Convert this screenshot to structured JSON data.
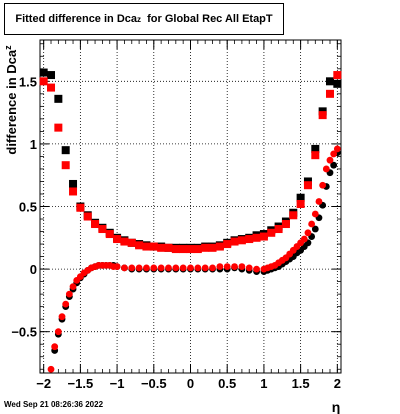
{
  "chart_data": {
    "type": "scatter",
    "title": {
      "prefix": "Fitted difference in Dca",
      "sub": "z",
      "suffix": "for Global Rec All EtapT"
    },
    "xlabel": "η",
    "ylabel": {
      "main": "difference in Dca",
      "sub": "z"
    },
    "xlim": [
      -2.05,
      2.05
    ],
    "ylim": [
      -0.83,
      1.83
    ],
    "xticks": [
      -2,
      -1.5,
      -1,
      -0.5,
      0,
      0.5,
      1,
      1.5,
      2
    ],
    "xtick_labels": [
      "−2",
      "−1.5",
      "−1",
      "−0.5",
      "0",
      "0.5",
      "1",
      "1.5",
      "2"
    ],
    "yticks": [
      -0.5,
      0,
      0.5,
      1,
      1.5
    ],
    "ytick_labels": [
      "−0.5",
      "0",
      "0.5",
      "1",
      "1.5"
    ],
    "grid": true,
    "colors": {
      "black_series": "#000000",
      "red_series": "#ff0000"
    },
    "series": [
      {
        "color": "black",
        "marker": "square",
        "x": [
          -2.0,
          -1.9,
          -1.8,
          -1.7,
          -1.6,
          -1.5,
          -1.4,
          -1.3,
          -1.2,
          -1.1,
          -1.0,
          -0.9,
          -0.8,
          -0.7,
          -0.6,
          -0.5,
          -0.4,
          -0.3,
          -0.2,
          -0.1,
          0.0,
          0.1,
          0.2,
          0.3,
          0.4,
          0.5,
          0.6,
          0.7,
          0.8,
          0.9,
          1.0,
          1.1,
          1.2,
          1.3,
          1.4,
          1.5,
          1.6,
          1.7,
          1.8,
          1.9,
          2.0
        ],
        "y": [
          1.57,
          1.55,
          1.36,
          0.95,
          0.68,
          0.5,
          0.43,
          0.37,
          0.33,
          0.29,
          0.25,
          0.23,
          0.21,
          0.2,
          0.19,
          0.18,
          0.18,
          0.17,
          0.17,
          0.17,
          0.17,
          0.17,
          0.18,
          0.18,
          0.19,
          0.21,
          0.23,
          0.24,
          0.25,
          0.27,
          0.28,
          0.31,
          0.34,
          0.38,
          0.45,
          0.57,
          0.7,
          0.96,
          1.26,
          1.5,
          1.48
        ]
      },
      {
        "color": "red",
        "marker": "square",
        "x": [
          -2.0,
          -1.9,
          -1.8,
          -1.7,
          -1.6,
          -1.5,
          -1.4,
          -1.3,
          -1.2,
          -1.1,
          -1.0,
          -0.9,
          -0.8,
          -0.7,
          -0.6,
          -0.5,
          -0.4,
          -0.3,
          -0.2,
          -0.1,
          0.0,
          0.1,
          0.2,
          0.3,
          0.4,
          0.5,
          0.6,
          0.7,
          0.8,
          0.9,
          1.0,
          1.1,
          1.2,
          1.3,
          1.4,
          1.5,
          1.6,
          1.7,
          1.8,
          1.9,
          2.0
        ],
        "y": [
          1.5,
          1.45,
          1.13,
          0.83,
          0.62,
          0.49,
          0.42,
          0.36,
          0.32,
          0.28,
          0.24,
          0.22,
          0.21,
          0.19,
          0.18,
          0.18,
          0.17,
          0.17,
          0.16,
          0.16,
          0.16,
          0.16,
          0.17,
          0.17,
          0.18,
          0.2,
          0.22,
          0.23,
          0.24,
          0.25,
          0.26,
          0.29,
          0.32,
          0.36,
          0.43,
          0.52,
          0.67,
          0.91,
          1.23,
          1.4,
          1.55
        ]
      },
      {
        "color": "black",
        "marker": "circle",
        "x": [
          -1.85,
          -1.8,
          -1.75,
          -1.7,
          -1.65,
          -1.6,
          -1.55,
          -1.5,
          -1.45,
          -1.4,
          -1.35,
          -1.3,
          -1.25,
          -1.2,
          -1.15,
          -1.1,
          -1.05,
          -1.0,
          -0.9,
          -0.8,
          -0.7,
          -0.6,
          -0.5,
          -0.4,
          -0.3,
          -0.2,
          -0.1,
          0.0,
          0.1,
          0.2,
          0.3,
          0.4,
          0.5,
          0.6,
          0.7,
          0.8,
          0.9,
          1.0,
          1.05,
          1.1,
          1.15,
          1.2,
          1.25,
          1.3,
          1.35,
          1.4,
          1.45,
          1.5,
          1.55,
          1.6,
          1.65,
          1.7,
          1.75,
          1.8,
          1.85,
          1.9,
          1.95,
          2.0
        ],
        "y": [
          -0.65,
          -0.52,
          -0.4,
          -0.3,
          -0.22,
          -0.16,
          -0.11,
          -0.07,
          -0.04,
          -0.01,
          0.01,
          0.02,
          0.03,
          0.03,
          0.03,
          0.03,
          0.03,
          0.02,
          0.01,
          0.0,
          0.0,
          0.0,
          0.0,
          0.0,
          0.0,
          0.0,
          0.0,
          0.0,
          0.0,
          0.0,
          0.0,
          0.0,
          0.0,
          0.01,
          0.0,
          -0.01,
          -0.02,
          -0.02,
          -0.01,
          0.0,
          0.01,
          0.02,
          0.04,
          0.06,
          0.08,
          0.1,
          0.13,
          0.15,
          0.18,
          0.21,
          0.26,
          0.32,
          0.41,
          0.51,
          0.66,
          0.77,
          0.83,
          0.93
        ]
      },
      {
        "color": "red",
        "marker": "circle",
        "x": [
          -1.9,
          -1.85,
          -1.8,
          -1.75,
          -1.7,
          -1.65,
          -1.6,
          -1.55,
          -1.5,
          -1.45,
          -1.4,
          -1.35,
          -1.3,
          -1.25,
          -1.2,
          -1.15,
          -1.1,
          -1.05,
          -1.0,
          -0.9,
          -0.8,
          -0.7,
          -0.6,
          -0.5,
          -0.4,
          -0.3,
          -0.2,
          -0.1,
          0.0,
          0.1,
          0.2,
          0.3,
          0.4,
          0.5,
          0.6,
          0.7,
          0.8,
          0.9,
          1.0,
          1.05,
          1.1,
          1.15,
          1.2,
          1.25,
          1.3,
          1.35,
          1.4,
          1.45,
          1.5,
          1.55,
          1.6,
          1.65,
          1.7,
          1.75,
          1.8,
          1.85,
          1.9,
          1.95,
          2.0
        ],
        "y": [
          -0.8,
          -0.62,
          -0.5,
          -0.38,
          -0.28,
          -0.2,
          -0.14,
          -0.09,
          -0.06,
          -0.03,
          -0.01,
          0.01,
          0.02,
          0.03,
          0.03,
          0.03,
          0.03,
          0.02,
          0.02,
          0.01,
          0.01,
          0.01,
          0.01,
          0.01,
          0.01,
          0.01,
          0.01,
          0.01,
          0.01,
          0.01,
          0.01,
          0.01,
          0.02,
          0.02,
          0.02,
          0.02,
          0.01,
          0.0,
          0.0,
          0.01,
          0.02,
          0.03,
          0.05,
          0.07,
          0.09,
          0.12,
          0.15,
          0.18,
          0.21,
          0.24,
          0.29,
          0.36,
          0.44,
          0.54,
          0.67,
          0.8,
          0.87,
          0.92,
          0.96
        ]
      }
    ]
  },
  "datestamp": "Wed Sep 21 08:26:36 2022"
}
